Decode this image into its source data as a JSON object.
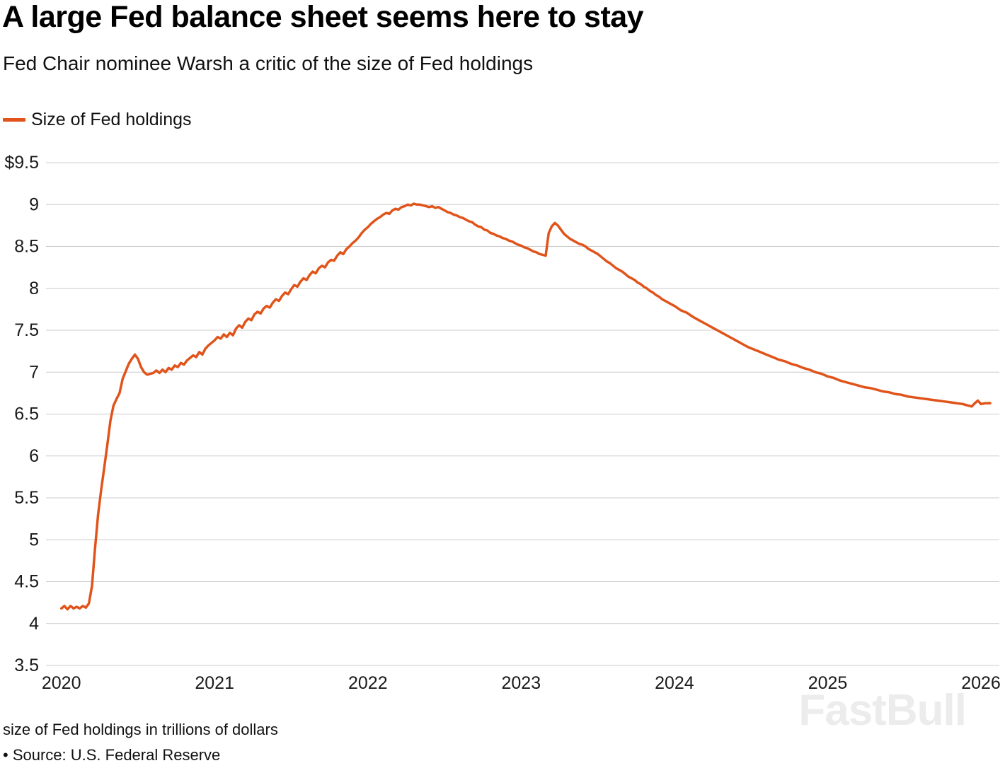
{
  "header": {
    "title": "A large Fed balance sheet seems here to stay",
    "subtitle": "Fed Chair nominee Warsh a critic of the size of Fed holdings"
  },
  "legend": {
    "label": "Size of Fed holdings"
  },
  "footer": {
    "note": "size of Fed holdings in trillions of dollars",
    "source": "• Source: U.S. Federal Reserve"
  },
  "watermark": {
    "text": "FastBull"
  },
  "colors": {
    "line": "#e0541b",
    "grid": "#cccccc",
    "tick_text": "#1a1a1a",
    "watermark": "#ececec"
  },
  "chart_data": {
    "type": "line",
    "title": "A large Fed balance sheet seems here to stay",
    "subtitle": "Fed Chair nominee Warsh a critic of the size of Fed holdings",
    "xlabel": "",
    "ylabel": "size of Fed holdings in trillions of dollars",
    "units": "trillions of US dollars",
    "source": "U.S. Federal Reserve",
    "grid": true,
    "legend_position": "top-left",
    "xlim": [
      2019.9,
      2026.12
    ],
    "ylim": [
      3.5,
      9.5
    ],
    "yticks": [
      {
        "v": 9.5,
        "label": "$9.5"
      },
      {
        "v": 9.0,
        "label": "9"
      },
      {
        "v": 8.5,
        "label": "8.5"
      },
      {
        "v": 8.0,
        "label": "8"
      },
      {
        "v": 7.5,
        "label": "7.5"
      },
      {
        "v": 7.0,
        "label": "7"
      },
      {
        "v": 6.5,
        "label": "6.5"
      },
      {
        "v": 6.0,
        "label": "6"
      },
      {
        "v": 5.5,
        "label": "5.5"
      },
      {
        "v": 5.0,
        "label": "5"
      },
      {
        "v": 4.5,
        "label": "4.5"
      },
      {
        "v": 4.0,
        "label": "4"
      },
      {
        "v": 3.5,
        "label": "3.5"
      }
    ],
    "xticks": [
      {
        "v": 2020,
        "label": "2020"
      },
      {
        "v": 2021,
        "label": "2021"
      },
      {
        "v": 2022,
        "label": "2022"
      },
      {
        "v": 2023,
        "label": "2023"
      },
      {
        "v": 2024,
        "label": "2024"
      },
      {
        "v": 2025,
        "label": "2025"
      },
      {
        "v": 2026,
        "label": "2026"
      }
    ],
    "series": [
      {
        "name": "Size of Fed holdings",
        "color": "#e0541b",
        "points": [
          [
            2020.0,
            4.18
          ],
          [
            2020.02,
            4.21
          ],
          [
            2020.04,
            4.17
          ],
          [
            2020.06,
            4.21
          ],
          [
            2020.08,
            4.18
          ],
          [
            2020.1,
            4.2
          ],
          [
            2020.12,
            4.18
          ],
          [
            2020.14,
            4.21
          ],
          [
            2020.16,
            4.19
          ],
          [
            2020.18,
            4.24
          ],
          [
            2020.2,
            4.45
          ],
          [
            2020.22,
            4.9
          ],
          [
            2020.24,
            5.3
          ],
          [
            2020.26,
            5.6
          ],
          [
            2020.28,
            5.86
          ],
          [
            2020.3,
            6.13
          ],
          [
            2020.32,
            6.42
          ],
          [
            2020.34,
            6.6
          ],
          [
            2020.36,
            6.68
          ],
          [
            2020.38,
            6.75
          ],
          [
            2020.4,
            6.92
          ],
          [
            2020.42,
            7.01
          ],
          [
            2020.44,
            7.1
          ],
          [
            2020.46,
            7.16
          ],
          [
            2020.48,
            7.21
          ],
          [
            2020.5,
            7.16
          ],
          [
            2020.52,
            7.06
          ],
          [
            2020.54,
            7.0
          ],
          [
            2020.56,
            6.97
          ],
          [
            2020.6,
            6.99
          ],
          [
            2020.62,
            7.02
          ],
          [
            2020.64,
            6.99
          ],
          [
            2020.66,
            7.03
          ],
          [
            2020.68,
            7.0
          ],
          [
            2020.7,
            7.05
          ],
          [
            2020.72,
            7.03
          ],
          [
            2020.74,
            7.08
          ],
          [
            2020.76,
            7.06
          ],
          [
            2020.78,
            7.11
          ],
          [
            2020.8,
            7.09
          ],
          [
            2020.82,
            7.14
          ],
          [
            2020.84,
            7.17
          ],
          [
            2020.86,
            7.2
          ],
          [
            2020.88,
            7.18
          ],
          [
            2020.9,
            7.24
          ],
          [
            2020.92,
            7.21
          ],
          [
            2020.94,
            7.28
          ],
          [
            2020.96,
            7.32
          ],
          [
            2020.98,
            7.35
          ],
          [
            2021.0,
            7.38
          ],
          [
            2021.02,
            7.42
          ],
          [
            2021.04,
            7.4
          ],
          [
            2021.06,
            7.45
          ],
          [
            2021.08,
            7.42
          ],
          [
            2021.1,
            7.47
          ],
          [
            2021.12,
            7.44
          ],
          [
            2021.14,
            7.52
          ],
          [
            2021.16,
            7.56
          ],
          [
            2021.18,
            7.53
          ],
          [
            2021.2,
            7.6
          ],
          [
            2021.22,
            7.64
          ],
          [
            2021.24,
            7.62
          ],
          [
            2021.26,
            7.69
          ],
          [
            2021.28,
            7.72
          ],
          [
            2021.3,
            7.7
          ],
          [
            2021.32,
            7.76
          ],
          [
            2021.34,
            7.79
          ],
          [
            2021.36,
            7.77
          ],
          [
            2021.38,
            7.83
          ],
          [
            2021.4,
            7.87
          ],
          [
            2021.42,
            7.85
          ],
          [
            2021.44,
            7.91
          ],
          [
            2021.46,
            7.95
          ],
          [
            2021.48,
            7.93
          ],
          [
            2021.5,
            7.99
          ],
          [
            2021.52,
            8.04
          ],
          [
            2021.54,
            8.02
          ],
          [
            2021.56,
            8.08
          ],
          [
            2021.58,
            8.12
          ],
          [
            2021.6,
            8.1
          ],
          [
            2021.62,
            8.16
          ],
          [
            2021.64,
            8.2
          ],
          [
            2021.66,
            8.18
          ],
          [
            2021.68,
            8.24
          ],
          [
            2021.7,
            8.27
          ],
          [
            2021.72,
            8.25
          ],
          [
            2021.74,
            8.31
          ],
          [
            2021.76,
            8.34
          ],
          [
            2021.78,
            8.33
          ],
          [
            2021.8,
            8.39
          ],
          [
            2021.82,
            8.43
          ],
          [
            2021.84,
            8.41
          ],
          [
            2021.86,
            8.47
          ],
          [
            2021.88,
            8.5
          ],
          [
            2021.9,
            8.54
          ],
          [
            2021.92,
            8.57
          ],
          [
            2021.94,
            8.61
          ],
          [
            2021.96,
            8.66
          ],
          [
            2021.98,
            8.7
          ],
          [
            2022.0,
            8.73
          ],
          [
            2022.02,
            8.77
          ],
          [
            2022.04,
            8.8
          ],
          [
            2022.06,
            8.83
          ],
          [
            2022.08,
            8.85
          ],
          [
            2022.1,
            8.88
          ],
          [
            2022.12,
            8.9
          ],
          [
            2022.14,
            8.89
          ],
          [
            2022.16,
            8.93
          ],
          [
            2022.18,
            8.95
          ],
          [
            2022.2,
            8.94
          ],
          [
            2022.22,
            8.97
          ],
          [
            2022.24,
            8.98
          ],
          [
            2022.26,
            9.0
          ],
          [
            2022.28,
            8.99
          ],
          [
            2022.3,
            9.01
          ],
          [
            2022.32,
            9.0
          ],
          [
            2022.34,
            9.0
          ],
          [
            2022.36,
            8.99
          ],
          [
            2022.38,
            8.98
          ],
          [
            2022.4,
            8.97
          ],
          [
            2022.42,
            8.98
          ],
          [
            2022.44,
            8.96
          ],
          [
            2022.46,
            8.97
          ],
          [
            2022.48,
            8.95
          ],
          [
            2022.5,
            8.93
          ],
          [
            2022.52,
            8.91
          ],
          [
            2022.54,
            8.9
          ],
          [
            2022.56,
            8.88
          ],
          [
            2022.58,
            8.87
          ],
          [
            2022.6,
            8.85
          ],
          [
            2022.62,
            8.84
          ],
          [
            2022.64,
            8.82
          ],
          [
            2022.66,
            8.8
          ],
          [
            2022.68,
            8.79
          ],
          [
            2022.7,
            8.76
          ],
          [
            2022.72,
            8.74
          ],
          [
            2022.74,
            8.73
          ],
          [
            2022.76,
            8.7
          ],
          [
            2022.78,
            8.69
          ],
          [
            2022.8,
            8.66
          ],
          [
            2022.82,
            8.65
          ],
          [
            2022.84,
            8.63
          ],
          [
            2022.86,
            8.62
          ],
          [
            2022.88,
            8.6
          ],
          [
            2022.9,
            8.59
          ],
          [
            2022.92,
            8.57
          ],
          [
            2022.94,
            8.56
          ],
          [
            2022.96,
            8.54
          ],
          [
            2022.98,
            8.52
          ],
          [
            2023.0,
            8.51
          ],
          [
            2023.02,
            8.49
          ],
          [
            2023.04,
            8.48
          ],
          [
            2023.06,
            8.46
          ],
          [
            2023.08,
            8.44
          ],
          [
            2023.1,
            8.43
          ],
          [
            2023.12,
            8.41
          ],
          [
            2023.14,
            8.4
          ],
          [
            2023.16,
            8.39
          ],
          [
            2023.18,
            8.66
          ],
          [
            2023.2,
            8.74
          ],
          [
            2023.22,
            8.78
          ],
          [
            2023.24,
            8.75
          ],
          [
            2023.26,
            8.7
          ],
          [
            2023.28,
            8.65
          ],
          [
            2023.3,
            8.62
          ],
          [
            2023.32,
            8.59
          ],
          [
            2023.34,
            8.57
          ],
          [
            2023.36,
            8.55
          ],
          [
            2023.38,
            8.53
          ],
          [
            2023.4,
            8.52
          ],
          [
            2023.42,
            8.5
          ],
          [
            2023.44,
            8.47
          ],
          [
            2023.46,
            8.45
          ],
          [
            2023.48,
            8.43
          ],
          [
            2023.5,
            8.41
          ],
          [
            2023.52,
            8.38
          ],
          [
            2023.54,
            8.35
          ],
          [
            2023.56,
            8.32
          ],
          [
            2023.58,
            8.3
          ],
          [
            2023.6,
            8.27
          ],
          [
            2023.62,
            8.24
          ],
          [
            2023.64,
            8.22
          ],
          [
            2023.66,
            8.2
          ],
          [
            2023.68,
            8.17
          ],
          [
            2023.7,
            8.14
          ],
          [
            2023.72,
            8.12
          ],
          [
            2023.74,
            8.1
          ],
          [
            2023.76,
            8.07
          ],
          [
            2023.78,
            8.05
          ],
          [
            2023.8,
            8.02
          ],
          [
            2023.82,
            8.0
          ],
          [
            2023.84,
            7.97
          ],
          [
            2023.86,
            7.95
          ],
          [
            2023.88,
            7.92
          ],
          [
            2023.9,
            7.9
          ],
          [
            2023.92,
            7.87
          ],
          [
            2023.94,
            7.85
          ],
          [
            2023.96,
            7.83
          ],
          [
            2023.98,
            7.81
          ],
          [
            2024.0,
            7.79
          ],
          [
            2024.04,
            7.74
          ],
          [
            2024.08,
            7.71
          ],
          [
            2024.12,
            7.66
          ],
          [
            2024.16,
            7.62
          ],
          [
            2024.2,
            7.58
          ],
          [
            2024.24,
            7.54
          ],
          [
            2024.28,
            7.5
          ],
          [
            2024.32,
            7.46
          ],
          [
            2024.36,
            7.42
          ],
          [
            2024.4,
            7.38
          ],
          [
            2024.44,
            7.34
          ],
          [
            2024.48,
            7.3
          ],
          [
            2024.52,
            7.27
          ],
          [
            2024.56,
            7.24
          ],
          [
            2024.6,
            7.21
          ],
          [
            2024.64,
            7.18
          ],
          [
            2024.68,
            7.15
          ],
          [
            2024.72,
            7.13
          ],
          [
            2024.76,
            7.1
          ],
          [
            2024.8,
            7.08
          ],
          [
            2024.84,
            7.05
          ],
          [
            2024.88,
            7.03
          ],
          [
            2024.92,
            7.0
          ],
          [
            2024.96,
            6.98
          ],
          [
            2025.0,
            6.95
          ],
          [
            2025.04,
            6.93
          ],
          [
            2025.08,
            6.9
          ],
          [
            2025.12,
            6.88
          ],
          [
            2025.16,
            6.86
          ],
          [
            2025.2,
            6.84
          ],
          [
            2025.24,
            6.82
          ],
          [
            2025.28,
            6.81
          ],
          [
            2025.32,
            6.79
          ],
          [
            2025.36,
            6.77
          ],
          [
            2025.4,
            6.76
          ],
          [
            2025.44,
            6.74
          ],
          [
            2025.48,
            6.73
          ],
          [
            2025.52,
            6.71
          ],
          [
            2025.56,
            6.7
          ],
          [
            2025.6,
            6.69
          ],
          [
            2025.64,
            6.68
          ],
          [
            2025.68,
            6.67
          ],
          [
            2025.72,
            6.66
          ],
          [
            2025.76,
            6.65
          ],
          [
            2025.8,
            6.64
          ],
          [
            2025.84,
            6.63
          ],
          [
            2025.88,
            6.62
          ],
          [
            2025.9,
            6.61
          ],
          [
            2025.92,
            6.6
          ],
          [
            2025.94,
            6.59
          ],
          [
            2025.96,
            6.63
          ],
          [
            2025.98,
            6.66
          ],
          [
            2026.0,
            6.62
          ],
          [
            2026.03,
            6.63
          ],
          [
            2026.06,
            6.63
          ]
        ]
      }
    ]
  }
}
